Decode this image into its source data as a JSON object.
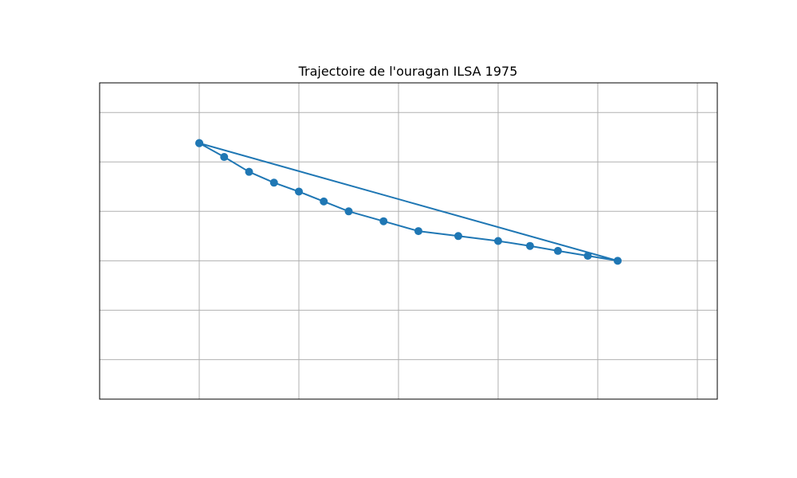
{
  "chart_data": {
    "type": "line",
    "title": "Trajectoire de l'ouragan ILSA 1975",
    "xlabel": "",
    "ylabel": "",
    "xlim": [
      -1,
      5.2
    ],
    "ylim": [
      -0.4,
      2.8
    ],
    "grid": true,
    "x_gridlines": [
      0,
      1,
      2,
      3,
      4,
      5
    ],
    "y_gridlines": [
      0,
      0.5,
      1,
      1.5,
      2,
      2.5
    ],
    "tick_labels_visible": false,
    "legend": "none",
    "colors": {
      "line": "#1f77b4",
      "marker": "#1f77b4",
      "grid": "#b0b0b0",
      "frame": "#000000"
    },
    "series": [
      {
        "x": [
          0.0,
          0.25,
          0.5,
          0.75,
          1.0,
          1.25,
          1.5,
          1.85,
          2.2,
          2.6,
          3.0,
          3.32,
          3.6,
          3.9,
          4.2,
          0.0
        ],
        "y": [
          2.19,
          2.05,
          1.9,
          1.79,
          1.7,
          1.6,
          1.5,
          1.4,
          1.3,
          1.25,
          1.2,
          1.15,
          1.1,
          1.05,
          1.0,
          2.19
        ]
      }
    ]
  }
}
